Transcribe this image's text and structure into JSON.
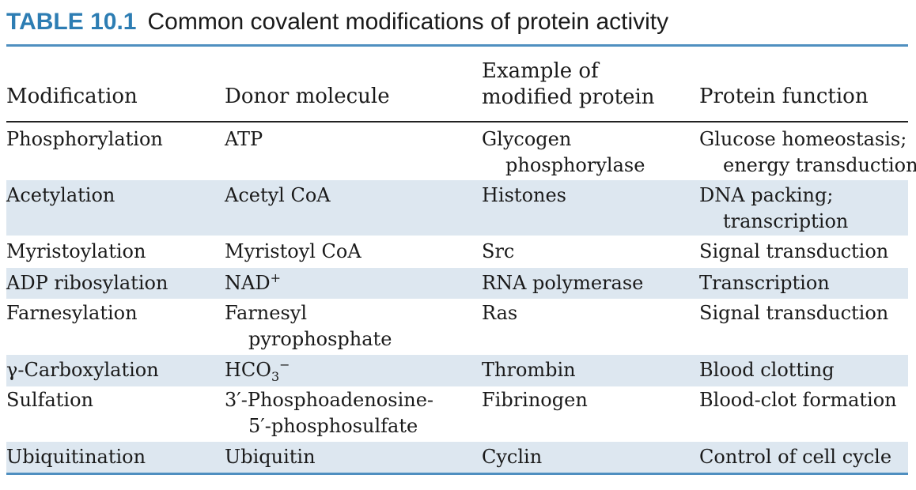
{
  "caption": {
    "number": "TABLE 10.1",
    "title": "Common covalent modifications of protein activity"
  },
  "columns": [
    {
      "lines": [
        "Modification"
      ]
    },
    {
      "lines": [
        "Donor molecule"
      ]
    },
    {
      "lines": [
        "Example of",
        "modified protein"
      ]
    },
    {
      "lines": [
        "Protein function"
      ]
    }
  ],
  "rows": [
    {
      "modification": [
        "Phosphorylation"
      ],
      "donor": [
        "ATP"
      ],
      "example": [
        "Glycogen",
        "phosphorylase"
      ],
      "function": [
        "Glucose homeostasis;",
        "energy transduction"
      ]
    },
    {
      "modification": [
        "Acetylation"
      ],
      "donor": [
        "Acetyl CoA"
      ],
      "example": [
        "Histones"
      ],
      "function": [
        "DNA packing;",
        "transcription"
      ]
    },
    {
      "modification": [
        "Myristoylation"
      ],
      "donor": [
        "Myristoyl CoA"
      ],
      "example": [
        "Src"
      ],
      "function": [
        "Signal transduction"
      ]
    },
    {
      "modification": [
        "ADP ribosylation"
      ],
      "donor": [
        "NAD"
      ],
      "donor_sup": "+",
      "example": [
        "RNA polymerase"
      ],
      "function": [
        "Transcription"
      ]
    },
    {
      "modification": [
        "Farnesylation"
      ],
      "donor": [
        "Farnesyl",
        "pyrophosphate"
      ],
      "example": [
        "Ras"
      ],
      "function": [
        "Signal transduction"
      ]
    },
    {
      "modification": [
        "γ-Carboxylation"
      ],
      "donor": [
        "HCO"
      ],
      "donor_sub": "3",
      "donor_sup": "−",
      "example": [
        "Thrombin"
      ],
      "function": [
        "Blood clotting"
      ]
    },
    {
      "modification": [
        "Sulfation"
      ],
      "donor": [
        "3′-Phosphoadenosine-",
        "5′-phosphosulfate"
      ],
      "example": [
        "Fibrinogen"
      ],
      "function": [
        "Blood-clot formation"
      ]
    },
    {
      "modification": [
        "Ubiquitination"
      ],
      "donor": [
        "Ubiquitin"
      ],
      "example": [
        "Cyclin"
      ],
      "function": [
        "Control of cell cycle"
      ]
    }
  ]
}
